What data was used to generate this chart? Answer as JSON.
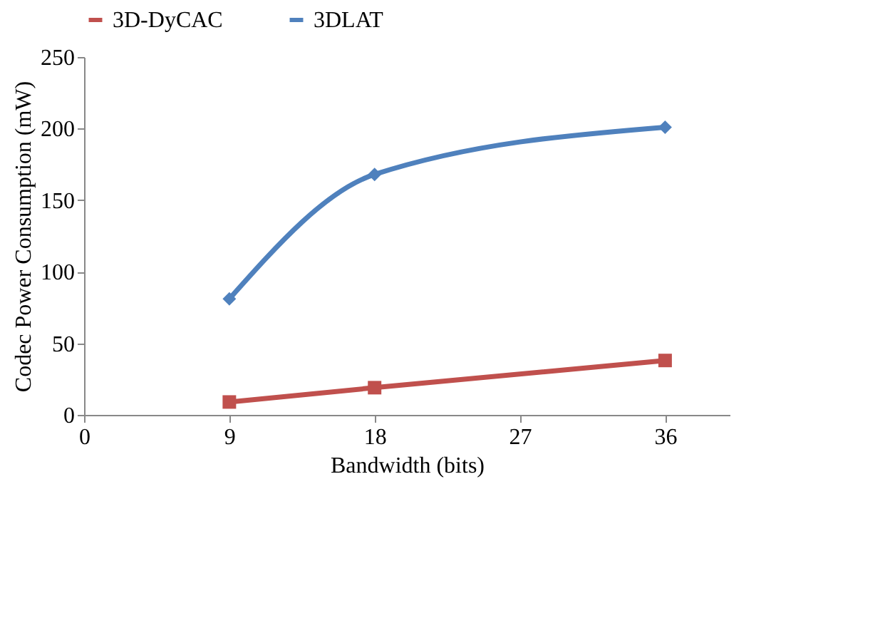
{
  "chart_data": {
    "type": "line",
    "xlabel": "Bandwidth (bits)",
    "ylabel": "Codec Power Consumption (mW)",
    "x": [
      9,
      18,
      36
    ],
    "series": [
      {
        "name": "3D-DyCAC",
        "color": "#c0504d",
        "marker": "square",
        "values": [
          9,
          19,
          38
        ]
      },
      {
        "name": "3DLAT",
        "color": "#4f81bd",
        "marker": "diamond",
        "values": [
          81,
          168,
          201
        ]
      }
    ],
    "xlim": [
      0,
      40
    ],
    "xticks": [
      0,
      9,
      18,
      27,
      36
    ],
    "ylim": [
      0,
      250
    ],
    "yticks": [
      0,
      50,
      100,
      150,
      200,
      250
    ],
    "grid": false,
    "legend": "top",
    "line_style": "solid"
  }
}
